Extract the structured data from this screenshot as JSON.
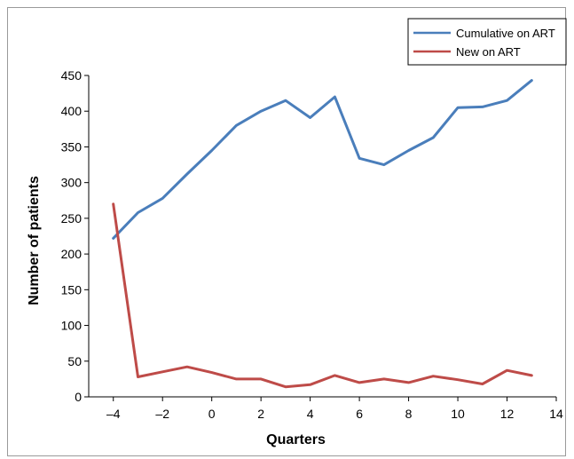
{
  "chart_data": {
    "type": "line",
    "title": "",
    "xlabel": "Quarters",
    "ylabel": "Number of patients",
    "xlim": [
      -5,
      14
    ],
    "ylim": [
      0,
      450
    ],
    "xticks": [
      -4,
      -2,
      0,
      2,
      4,
      6,
      8,
      10,
      12,
      14
    ],
    "xtick_labels": [
      "–4",
      "–2",
      "0",
      "2",
      "4",
      "6",
      "8",
      "10",
      "12",
      "14"
    ],
    "yticks": [
      0,
      50,
      100,
      150,
      200,
      250,
      300,
      350,
      400,
      450
    ],
    "grid": false,
    "legend_position": "top-right",
    "series": [
      {
        "name": "Cumulative on ART",
        "color": "#4a7ebb",
        "x": [
          -4,
          -3,
          -2,
          -1,
          0,
          1,
          2,
          3,
          4,
          5,
          6,
          7,
          8,
          9,
          10,
          11,
          12,
          13
        ],
        "y": [
          222,
          258,
          278,
          312,
          345,
          380,
          400,
          415,
          391,
          420,
          334,
          325,
          345,
          363,
          405,
          406,
          415,
          443
        ]
      },
      {
        "name": "New on ART",
        "color": "#be4b48",
        "x": [
          -4,
          -3,
          -2,
          -1,
          0,
          1,
          2,
          3,
          4,
          5,
          6,
          7,
          8,
          9,
          10,
          11,
          12,
          13
        ],
        "y": [
          270,
          28,
          35,
          42,
          34,
          25,
          25,
          14,
          17,
          30,
          20,
          25,
          20,
          29,
          24,
          18,
          37,
          30
        ]
      }
    ]
  }
}
